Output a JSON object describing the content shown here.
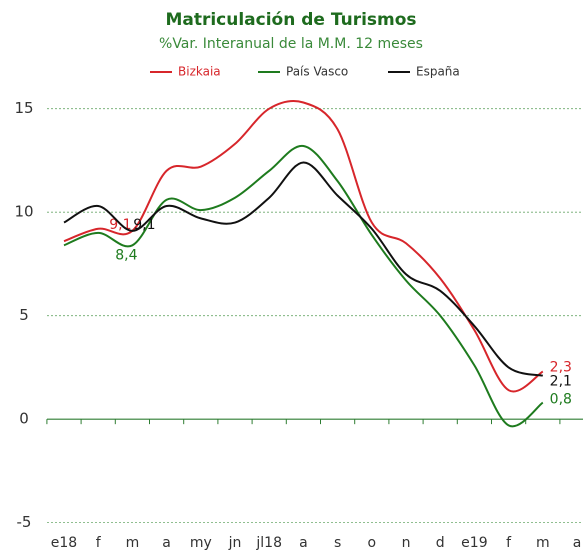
{
  "chart_data": {
    "type": "line",
    "title": "Matriculación de Turismos",
    "subtitle": "%Var. Interanual de la M.M. 12 meses",
    "categories": [
      "e18",
      "f",
      "m",
      "a",
      "my",
      "jn",
      "jl18",
      "a",
      "s",
      "o",
      "n",
      "d",
      "e19",
      "f",
      "m",
      "a"
    ],
    "series": [
      {
        "name": "Bizkaia",
        "color": "#d7262b",
        "values": [
          8.6,
          9.2,
          9.1,
          12.0,
          12.2,
          13.3,
          15.0,
          15.3,
          14.0,
          9.5,
          8.5,
          6.8,
          4.3,
          1.4,
          2.3,
          null
        ],
        "value_labels": [
          null,
          null,
          "9,1",
          null,
          null,
          null,
          null,
          null,
          null,
          null,
          null,
          null,
          null,
          null,
          "2,3",
          null
        ]
      },
      {
        "name": "País Vasco",
        "color": "#1e7b1e",
        "values": [
          8.4,
          9.0,
          8.4,
          10.6,
          10.1,
          10.7,
          12.0,
          13.2,
          11.5,
          8.9,
          6.7,
          5.0,
          2.6,
          -0.3,
          0.8,
          null
        ],
        "value_labels": [
          null,
          null,
          "8,4",
          null,
          null,
          null,
          null,
          null,
          null,
          null,
          null,
          null,
          null,
          null,
          "0,8",
          null
        ]
      },
      {
        "name": "España",
        "color": "#111111",
        "values": [
          9.5,
          10.3,
          9.1,
          10.3,
          9.7,
          9.5,
          10.7,
          12.4,
          10.8,
          9.2,
          7.0,
          6.2,
          4.5,
          2.5,
          2.1,
          null
        ],
        "value_labels": [
          null,
          null,
          "9,1",
          null,
          null,
          null,
          null,
          null,
          null,
          null,
          null,
          null,
          null,
          null,
          "2,1",
          null
        ]
      }
    ],
    "ylim": [
      -5.5,
      16
    ],
    "yticks": [
      15,
      10,
      5,
      0,
      -5
    ],
    "grid": true,
    "legend": "top"
  }
}
